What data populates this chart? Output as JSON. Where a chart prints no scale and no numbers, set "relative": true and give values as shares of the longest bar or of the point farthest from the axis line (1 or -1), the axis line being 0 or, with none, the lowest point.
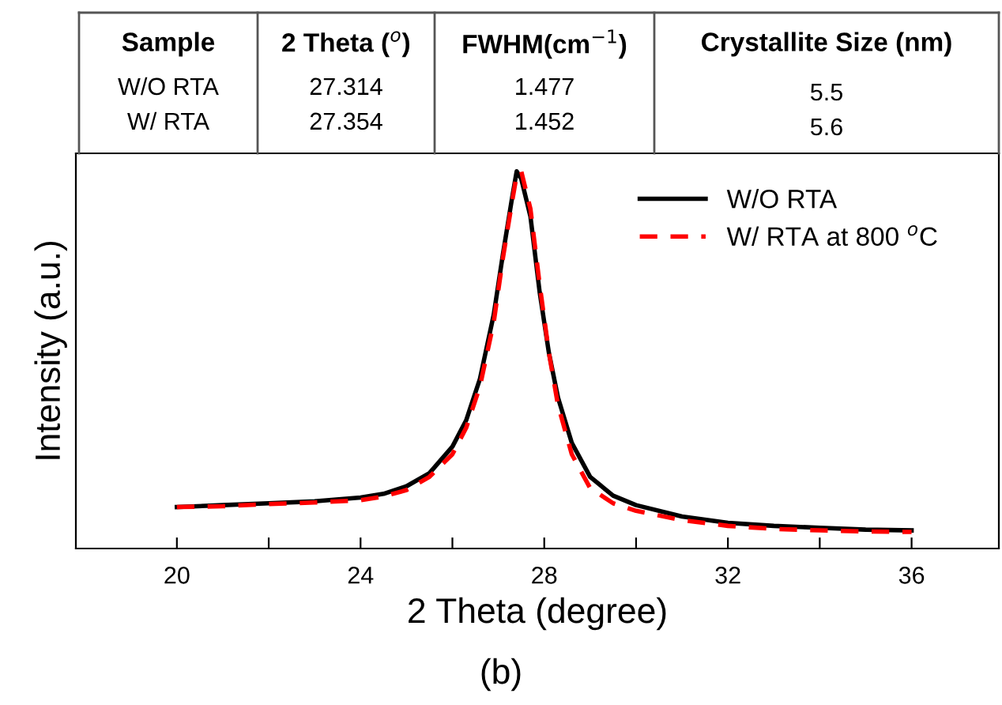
{
  "chart_data": {
    "type": "line",
    "relative": true,
    "xlabel": "2 Theta (degree)",
    "ylabel": "Intensity (a.u.)",
    "annotations": [
      "Sample",
      "2 Theta ($^{o}$)",
      "FWHM(cm$^{−1}$)",
      "Crystallite Size (nm)",
      "W/O RTA",
      "27.314",
      "1.477",
      "5.5",
      "W/ RTA",
      "27.354",
      "1.452",
      "5.6",
      "(b)"
    ],
    "x": [
      20,
      21,
      22,
      23,
      24,
      24.5,
      25,
      25.5,
      26,
      26.3,
      26.6,
      26.9,
      27.1,
      27.3,
      27.4,
      27.5,
      27.7,
      27.9,
      28.1,
      28.3,
      28.6,
      29,
      29.5,
      30,
      31,
      32,
      33,
      34,
      35,
      36
    ],
    "xlim": [
      17.8,
      37.9
    ],
    "xticks": [
      20,
      {
        "value": 22,
        "label": null
      },
      24,
      {
        "value": 26,
        "label": null
      },
      28,
      {
        "value": 30,
        "label": null
      },
      32,
      {
        "value": 34,
        "label": null
      },
      36
    ],
    "series": [
      {
        "name": "W/O RTA",
        "color": "#000000",
        "line_style": "solid",
        "values": [
          0.11,
          0.115,
          0.12,
          0.125,
          0.135,
          0.145,
          0.165,
          0.2,
          0.27,
          0.34,
          0.45,
          0.62,
          0.78,
          0.93,
          1.0,
          0.98,
          0.88,
          0.68,
          0.52,
          0.4,
          0.28,
          0.19,
          0.14,
          0.115,
          0.085,
          0.068,
          0.06,
          0.055,
          0.05,
          0.048
        ]
      },
      {
        "name": "W/ RTA at 800 $^{o}$C",
        "color": "#ff0000",
        "line_style": "dashed",
        "values": [
          0.11,
          0.112,
          0.118,
          0.122,
          0.128,
          0.138,
          0.155,
          0.19,
          0.25,
          0.32,
          0.43,
          0.6,
          0.77,
          0.92,
          0.99,
          1.0,
          0.9,
          0.7,
          0.52,
          0.38,
          0.25,
          0.16,
          0.12,
          0.1,
          0.075,
          0.06,
          0.052,
          0.048,
          0.045,
          0.044
        ]
      }
    ],
    "legend": "top right",
    "grid": false,
    "tick_labels": "x"
  }
}
